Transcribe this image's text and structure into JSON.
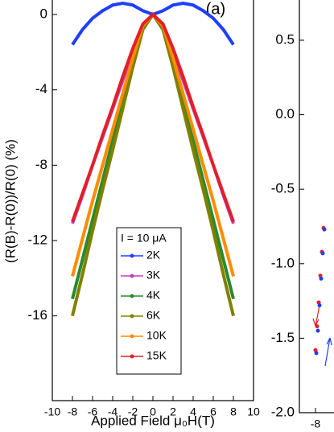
{
  "chart_data": [
    {
      "type": "line",
      "annotation": "(a)",
      "xlabel": "Applied Field μ₀H(T)",
      "ylabel": "(R(B)-R(0))/R(0) (%)",
      "legend_title": "I = 10 μA",
      "x": [
        -8,
        -7,
        -6,
        -5,
        -4,
        -3,
        -2,
        -1,
        0,
        1,
        2,
        3,
        4,
        5,
        6,
        7,
        8
      ],
      "xlim": [
        -10,
        10
      ],
      "xticks": [
        -10,
        -8,
        -6,
        -4,
        -2,
        0,
        2,
        4,
        6,
        8,
        10
      ],
      "ylim": [
        -20.5,
        0.77
      ],
      "yticks": [
        0,
        -4,
        -8,
        -12,
        -16
      ],
      "series": [
        {
          "name": "2K",
          "color": "#1f3fff",
          "values": [
            -1.6,
            -0.8,
            -0.2,
            0.2,
            0.5,
            0.6,
            0.5,
            0.2,
            0,
            0.2,
            0.5,
            0.6,
            0.5,
            0.2,
            -0.2,
            -0.8,
            -1.6
          ]
        },
        {
          "name": "3K",
          "color": "#c040c0",
          "values": [
            -11.1,
            -9.6,
            -8,
            -6.5,
            -5,
            -3.5,
            -2,
            -0.6,
            0,
            -0.6,
            -2,
            -3.5,
            -5,
            -6.5,
            -8,
            -9.6,
            -11.1
          ]
        },
        {
          "name": "4K",
          "color": "#2a8a2a",
          "values": [
            -15.1,
            -13,
            -10.9,
            -8.8,
            -6.7,
            -4.6,
            -2.6,
            -0.7,
            0,
            -0.7,
            -2.6,
            -4.6,
            -6.7,
            -8.8,
            -10.9,
            -13,
            -15.1
          ]
        },
        {
          "name": "6K",
          "color": "#808000",
          "values": [
            -16,
            -13.8,
            -11.5,
            -9.3,
            -7.2,
            -5,
            -2.8,
            -0.8,
            0,
            -0.8,
            -2.8,
            -5,
            -7.2,
            -9.3,
            -11.5,
            -13.8,
            -16
          ]
        },
        {
          "name": "10K",
          "color": "#ff8c00",
          "values": [
            -13.9,
            -11.9,
            -9.9,
            -8,
            -6.1,
            -4.2,
            -2.3,
            -0.6,
            0,
            -0.6,
            -2.3,
            -4.2,
            -6.1,
            -8,
            -9.9,
            -11.9,
            -13.9
          ]
        },
        {
          "name": "15K",
          "color": "#e0202a",
          "values": [
            -11,
            -9.5,
            -8,
            -6.4,
            -4.9,
            -3.3,
            -1.8,
            -0.5,
            0,
            -0.5,
            -1.8,
            -3.3,
            -4.9,
            -6.4,
            -8,
            -9.5,
            -11
          ]
        }
      ]
    },
    {
      "type": "scatter",
      "x": [
        -8,
        -7.8,
        -7.6,
        -7.4,
        -7.2,
        -7
      ],
      "xlim": [
        -10,
        10
      ],
      "xticks": [
        -8
      ],
      "ylim": [
        -2.0,
        0.77
      ],
      "yticks": [
        0.5,
        {
          "value": 0,
          "label": "0.0"
        },
        -0.5,
        {
          "value": -1,
          "label": "-1.0"
        },
        -1.5,
        {
          "value": -2,
          "label": "-2.0"
        }
      ],
      "series": [
        {
          "color": "#e0202a",
          "values": [
            -1.58,
            -1.42,
            -1.26,
            -1.08,
            -0.92,
            -0.76
          ]
        },
        {
          "color": "#1f3fff",
          "values": [
            -1.6,
            -1.45,
            -1.28,
            -1.1,
            -0.93,
            -0.77
          ]
        }
      ]
    }
  ]
}
